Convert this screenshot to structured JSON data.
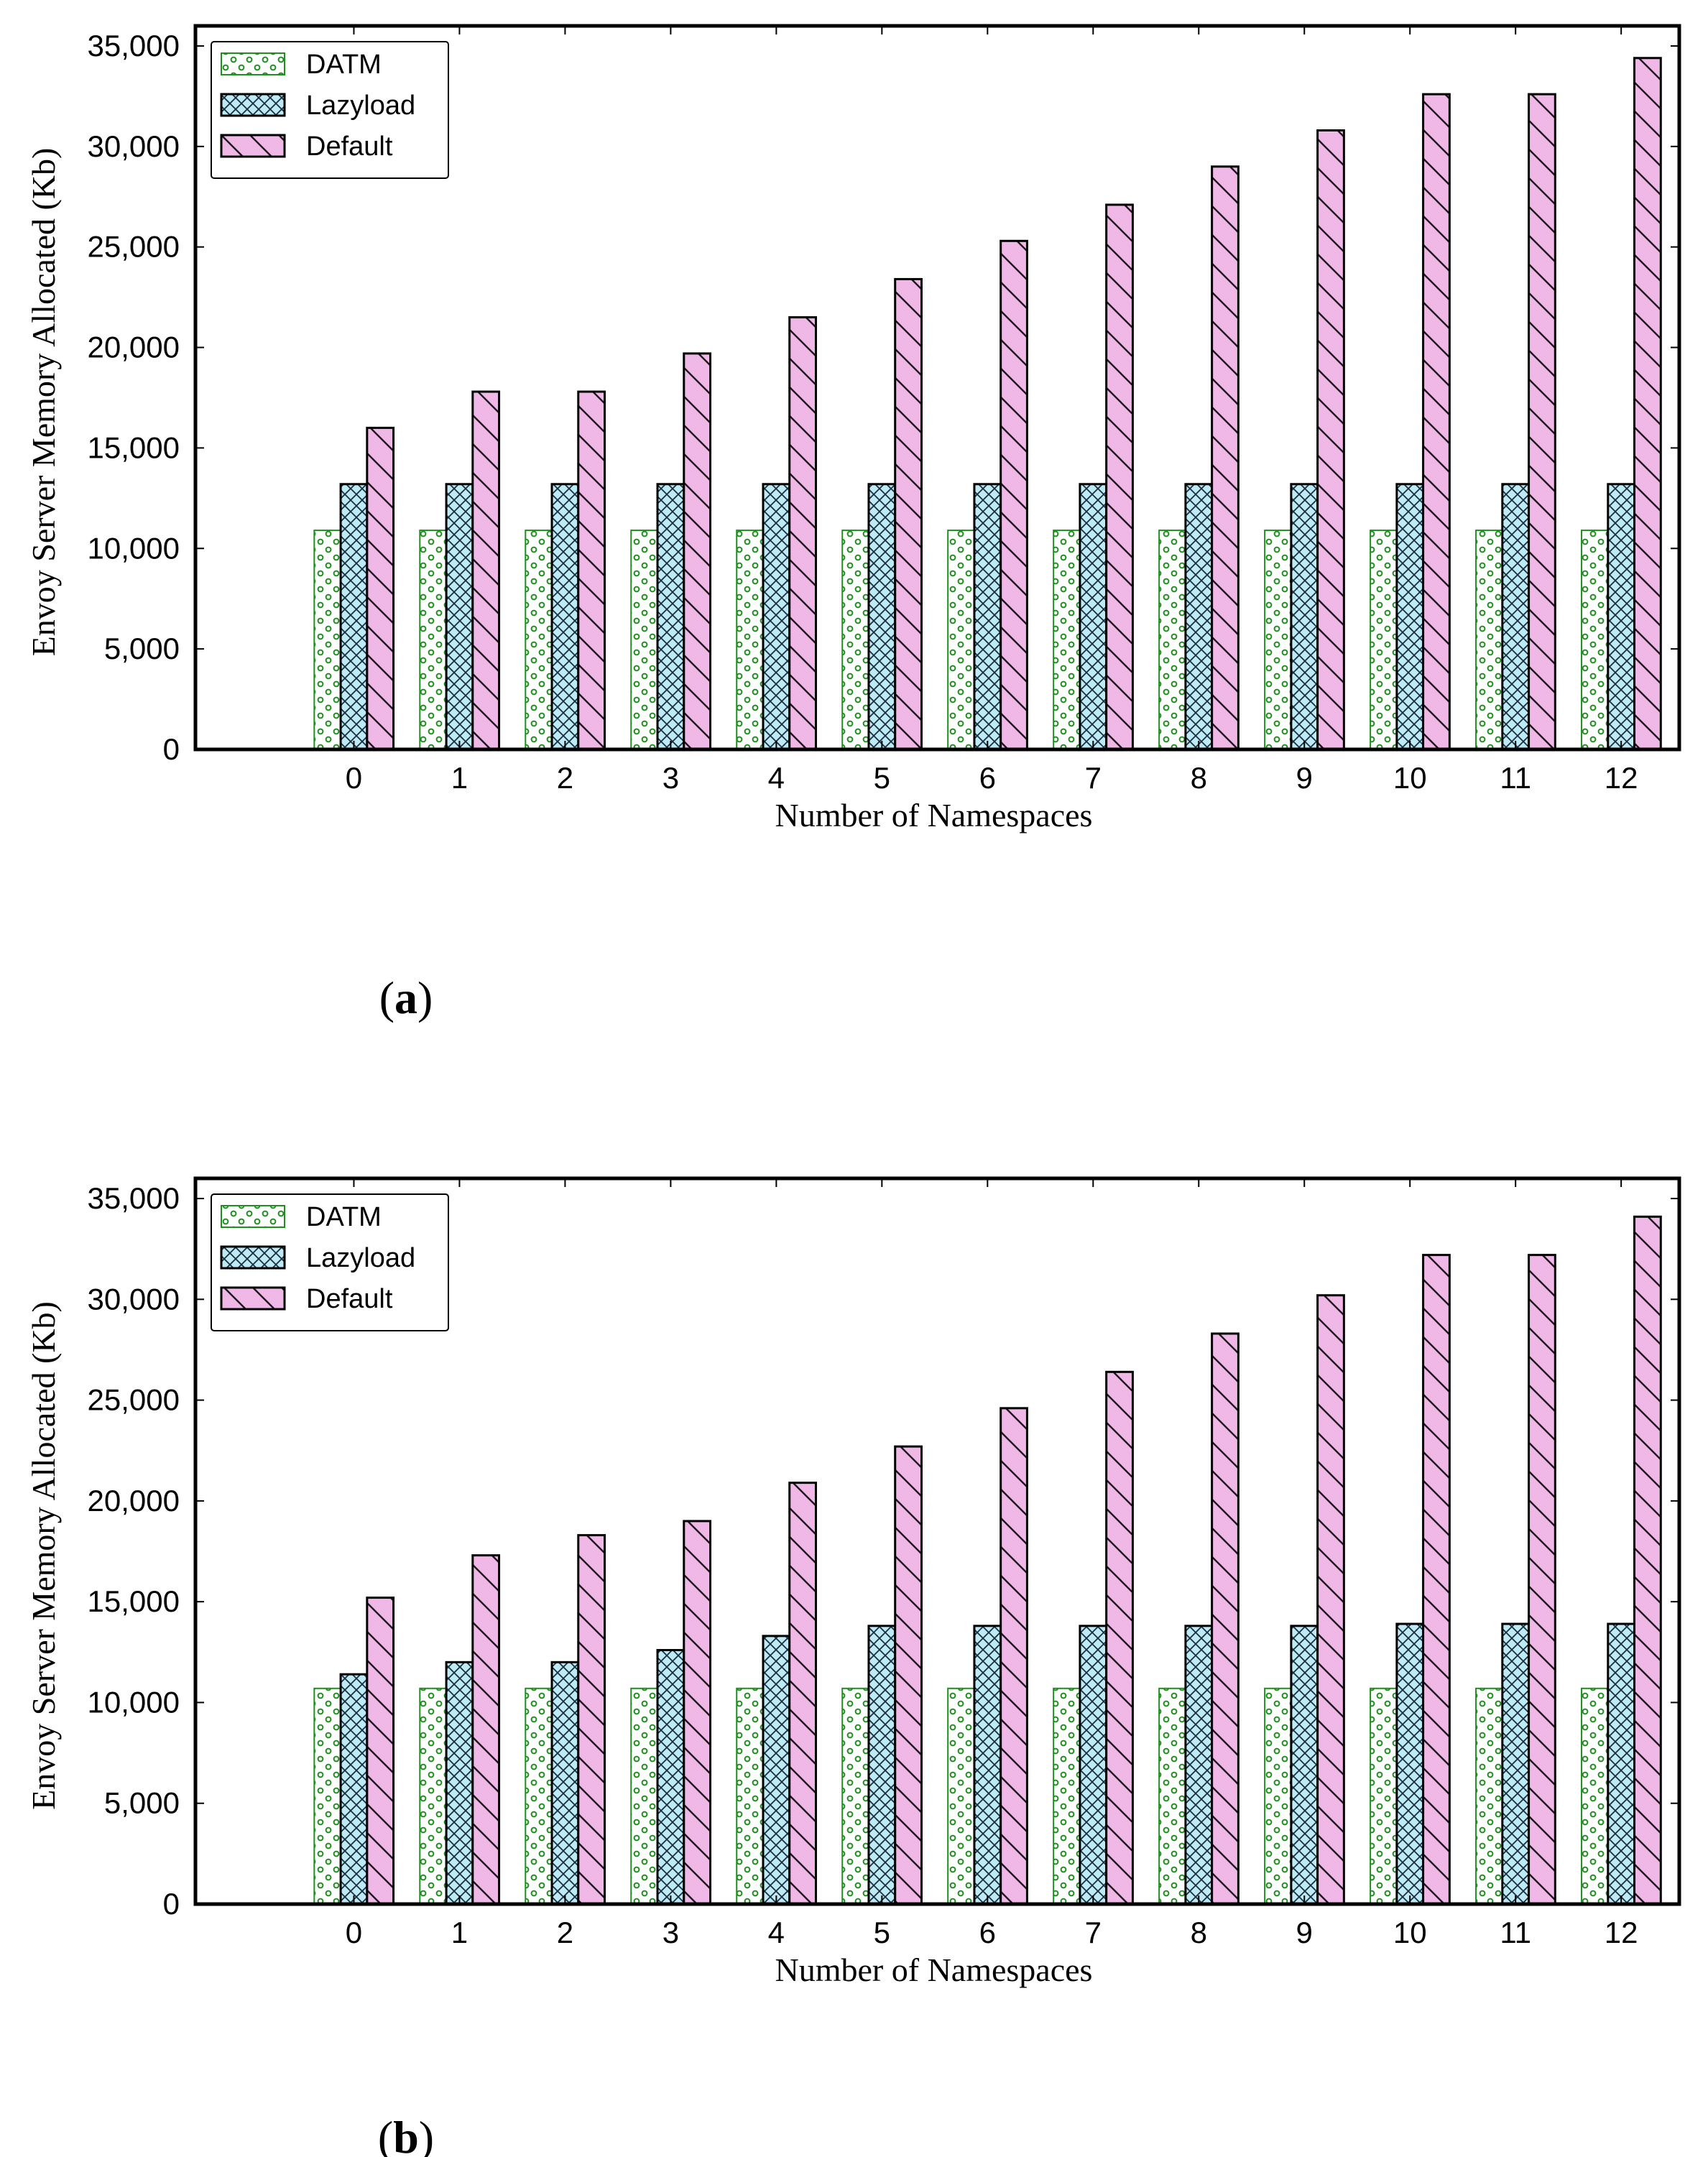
{
  "chart_data": [
    {
      "type": "bar",
      "panel_label": "(a)",
      "panel_label_parts": [
        "(",
        "a",
        ")"
      ],
      "xlabel": "Number of Namespaces",
      "ylabel": "Envoy Server Memory Allocated (Kb)",
      "categories": [
        "0",
        "1",
        "2",
        "3",
        "4",
        "5",
        "6",
        "7",
        "8",
        "9",
        "10",
        "11",
        "12"
      ],
      "ylim": [
        0,
        36000
      ],
      "yticks": [
        0,
        5000,
        10000,
        15000,
        20000,
        25000,
        30000,
        35000
      ],
      "ytick_labels": [
        "0",
        "5,000",
        "10,000",
        "15,000",
        "20,000",
        "25,000",
        "30,000",
        "35,000"
      ],
      "legend_position": "top-left",
      "series": [
        {
          "name": "DATM",
          "values": [
            10900,
            10900,
            10900,
            10900,
            10900,
            10900,
            10900,
            10900,
            10900,
            10900,
            10900,
            10900,
            10900
          ]
        },
        {
          "name": "Lazyload",
          "values": [
            13200,
            13200,
            13200,
            13200,
            13200,
            13200,
            13200,
            13200,
            13200,
            13200,
            13200,
            13200,
            13200
          ]
        },
        {
          "name": "Default",
          "values": [
            16000,
            17800,
            17800,
            19700,
            21500,
            23400,
            25300,
            27100,
            29000,
            30800,
            32600,
            32600,
            34400
          ]
        }
      ]
    },
    {
      "type": "bar",
      "panel_label": "(b)",
      "panel_label_parts": [
        "(",
        "b",
        ")"
      ],
      "xlabel": "Number of Namespaces",
      "ylabel": "Envoy Server Memory Allocated (Kb)",
      "categories": [
        "0",
        "1",
        "2",
        "3",
        "4",
        "5",
        "6",
        "7",
        "8",
        "9",
        "10",
        "11",
        "12"
      ],
      "ylim": [
        0,
        36000
      ],
      "yticks": [
        0,
        5000,
        10000,
        15000,
        20000,
        25000,
        30000,
        35000
      ],
      "ytick_labels": [
        "0",
        "5,000",
        "10,000",
        "15,000",
        "20,000",
        "25,000",
        "30,000",
        "35,000"
      ],
      "legend_position": "top-left",
      "series": [
        {
          "name": "DATM",
          "values": [
            10700,
            10700,
            10700,
            10700,
            10700,
            10700,
            10700,
            10700,
            10700,
            10700,
            10700,
            10700,
            10700
          ]
        },
        {
          "name": "Lazyload",
          "values": [
            11400,
            12000,
            12000,
            12600,
            13300,
            13800,
            13800,
            13800,
            13800,
            13800,
            13900,
            13900,
            13900
          ]
        },
        {
          "name": "Default",
          "values": [
            15200,
            17300,
            18300,
            19000,
            20900,
            22700,
            24600,
            26400,
            28300,
            30200,
            32200,
            32200,
            34100
          ]
        }
      ]
    }
  ],
  "colors": {
    "DATM_fill": "#ffffff",
    "DATM_edge": "#1f8f1f",
    "Lazyload_fill": "#bdeaf5",
    "Lazyload_edge": "#000000",
    "Default_fill": "#f0b8e6",
    "Default_edge": "#000000"
  }
}
